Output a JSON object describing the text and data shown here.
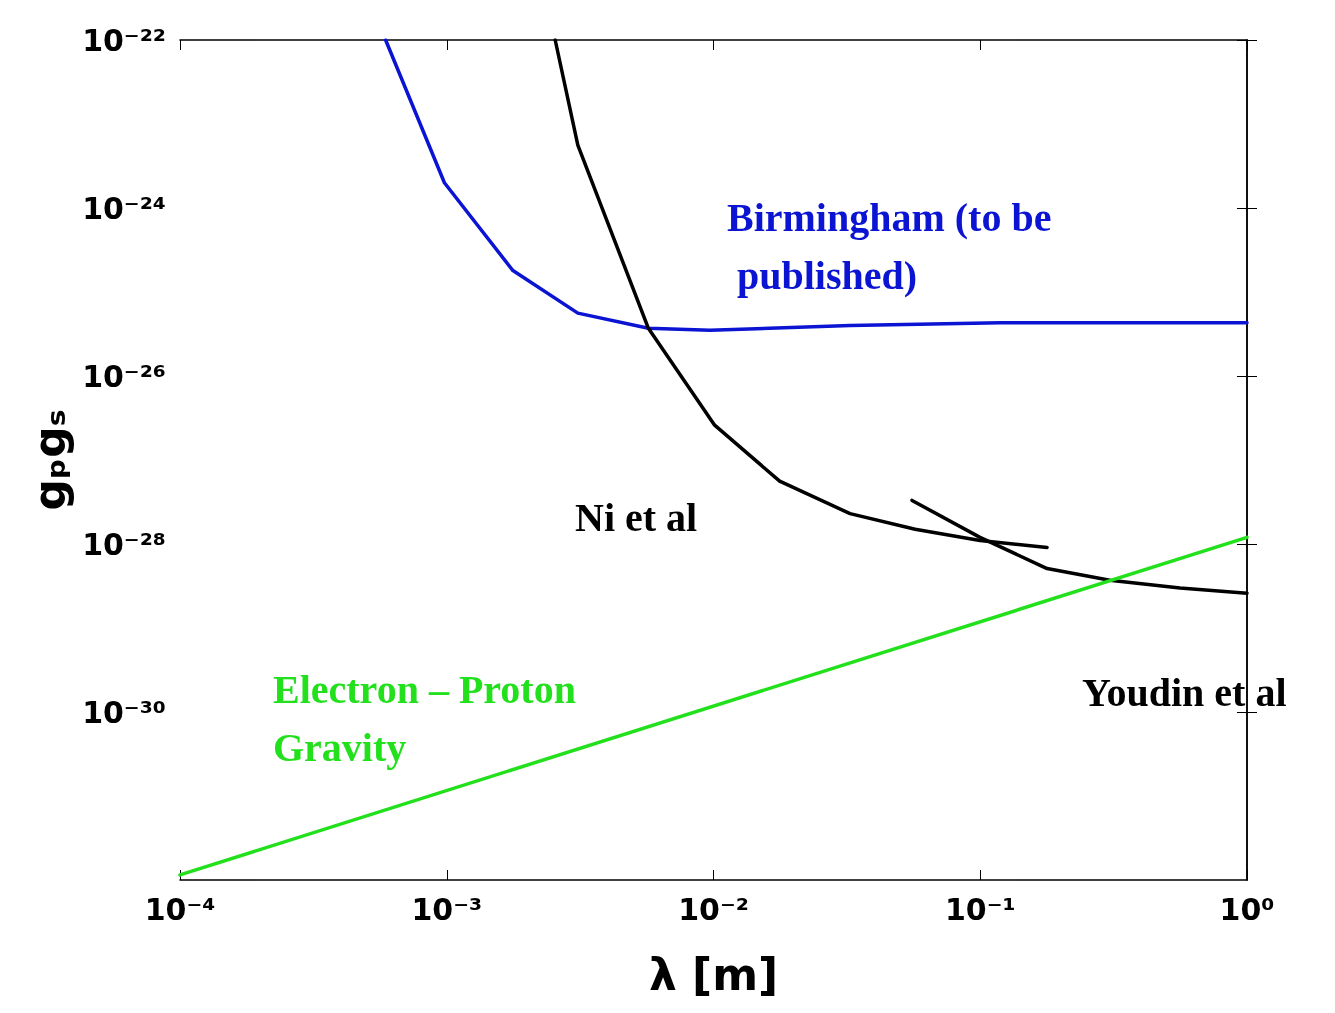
{
  "chart_data": {
    "type": "line",
    "xlabel": "λ [m]",
    "ylabel": "gₚgₛ",
    "log": "xy",
    "grid": false,
    "legend": false,
    "marker": "none",
    "line_style": "solid",
    "xlim": [
      0.0001,
      1
    ],
    "ylim": [
      1e-32,
      1e-22
    ],
    "xticks": [
      {
        "value": 0.0001,
        "label": "10⁻⁴"
      },
      {
        "value": 0.001,
        "label": "10⁻³"
      },
      {
        "value": 0.01,
        "label": "10⁻²"
      },
      {
        "value": 0.1,
        "label": "10⁻¹"
      },
      {
        "value": 1,
        "label": "10⁰"
      }
    ],
    "yticks": [
      {
        "value": 1e-30,
        "label": "10⁻³⁰"
      },
      {
        "value": 1e-28,
        "label": "10⁻²⁸"
      },
      {
        "value": 1e-26,
        "label": "10⁻²⁶"
      },
      {
        "value": 1e-24,
        "label": "10⁻²⁴"
      },
      {
        "value": 1e-22,
        "label": "10⁻²²"
      }
    ],
    "series": [
      {
        "name": "Birmingham (to be published)",
        "color": "#0a14d2",
        "x": [
          0.00059,
          0.00098,
          0.00177,
          0.0031,
          0.0057,
          0.0097,
          0.0325,
          0.119,
          1
        ],
        "values": [
          1e-22,
          2e-24,
          1.8e-25,
          5.6e-26,
          3.7e-26,
          3.5e-26,
          4e-26,
          4.3e-26,
          4.3e-26
        ]
      },
      {
        "name": "Ni et al",
        "color": "#000000",
        "x": [
          0.00255,
          0.0031,
          0.0057,
          0.0101,
          0.0177,
          0.0325,
          0.057,
          0.0998,
          0.178
        ],
        "values": [
          1e-22,
          5.6e-24,
          3.7e-26,
          2.6e-27,
          5.6e-28,
          2.3e-28,
          1.5e-28,
          1.1e-28,
          9.1e-29
        ]
      },
      {
        "name": "Youdin et al",
        "color": "#000000",
        "x": [
          0.0555,
          0.0998,
          0.178,
          0.306,
          0.561,
          1
        ],
        "values": [
          3.3e-28,
          1.2e-28,
          5.1e-29,
          3.7e-29,
          3e-29,
          2.6e-29
        ]
      },
      {
        "name": "Electron – Proton Gravity",
        "color": "#22e01c",
        "x": [
          0.0001,
          1
        ],
        "values": [
          1.15e-32,
          1.2e-28
        ]
      }
    ]
  }
}
